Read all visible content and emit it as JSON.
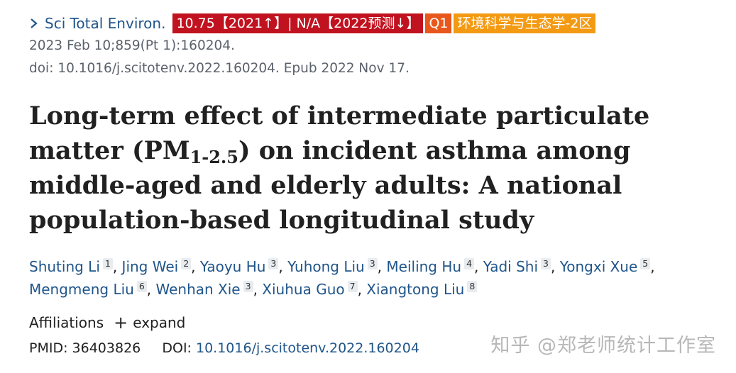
{
  "journal": {
    "name": "Sci Total Environ.",
    "badge_if": "10.75【2021↑】| N/A【2022预测↓】",
    "badge_quartile": "Q1",
    "badge_zone": "环境科学与生态学-2区",
    "colors": {
      "link": "#20558a",
      "badge_if_bg": "#c1121f",
      "badge_quartile_bg": "#e8581c",
      "badge_zone_bg": "#f39a12"
    }
  },
  "meta": {
    "citation": "2023 Feb 10;859(Pt 1):160204.",
    "doi_line": "doi: 10.1016/j.scitotenv.2022.160204. Epub 2022 Nov 17."
  },
  "title": {
    "part1": "Long-term effect of intermediate particulate matter (PM",
    "subscript": "1-2.5",
    "part2": ") on incident asthma among middle-aged and elderly adults: A national population-based longitudinal study"
  },
  "authors": [
    {
      "name": "Shuting Li",
      "aff": "1"
    },
    {
      "name": "Jing Wei",
      "aff": "2"
    },
    {
      "name": "Yaoyu Hu",
      "aff": "3"
    },
    {
      "name": "Yuhong Liu",
      "aff": "3"
    },
    {
      "name": "Meiling Hu",
      "aff": "4"
    },
    {
      "name": "Yadi Shi",
      "aff": "3"
    },
    {
      "name": "Yongxi Xue",
      "aff": "5"
    },
    {
      "name": "Mengmeng Liu",
      "aff": "6"
    },
    {
      "name": "Wenhan Xie",
      "aff": "3"
    },
    {
      "name": "Xiuhua Guo",
      "aff": "7"
    },
    {
      "name": "Xiangtong Liu",
      "aff": "8"
    }
  ],
  "affiliations": {
    "label": "Affiliations",
    "expand_label": "expand",
    "plus_glyph": "+"
  },
  "ids": {
    "pmid_label": "PMID:",
    "pmid_value": "36403826",
    "doi_label": "DOI:",
    "doi_value": "10.1016/j.scitotenv.2022.160204"
  },
  "watermark": "知乎 @郑老师统计工作室"
}
